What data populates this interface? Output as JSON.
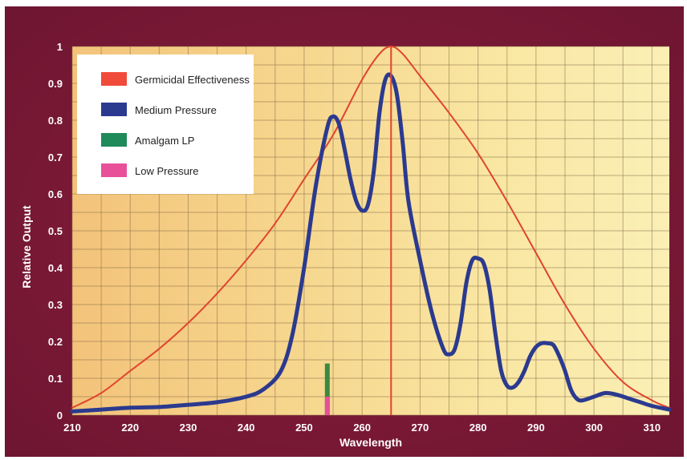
{
  "chart_data": {
    "type": "line",
    "xlabel": "Wavelength",
    "ylabel": "Relative Output",
    "xlim": [
      210,
      313
    ],
    "ylim": [
      0,
      1
    ],
    "x_ticks": [
      "210",
      "220",
      "230",
      "240",
      "250",
      "260",
      "270",
      "280",
      "290",
      "300",
      "310"
    ],
    "y_ticks": [
      "0",
      "0.1",
      "0.2",
      "0.3",
      "0.4",
      "0.5",
      "0.6",
      "0.7",
      "0.8",
      "0.9",
      "1"
    ],
    "grid": true,
    "legend_position": "top-left",
    "legend": [
      {
        "label": "Germicidal Effectiveness",
        "color": "#f04a3a"
      },
      {
        "label": "Medium Pressure",
        "color": "#2b3a8f"
      },
      {
        "label": "Amalgam LP",
        "color": "#1f8a5a"
      },
      {
        "label": "Low Pressure",
        "color": "#e8509a"
      }
    ],
    "series": [
      {
        "name": "Germicidal Effectiveness",
        "color": "#e0452e",
        "points": [
          [
            210,
            0.02
          ],
          [
            215,
            0.06
          ],
          [
            220,
            0.12
          ],
          [
            225,
            0.18
          ],
          [
            230,
            0.25
          ],
          [
            235,
            0.33
          ],
          [
            240,
            0.42
          ],
          [
            245,
            0.52
          ],
          [
            250,
            0.64
          ],
          [
            255,
            0.76
          ],
          [
            260,
            0.91
          ],
          [
            263,
            0.98
          ],
          [
            265,
            1.0
          ],
          [
            267,
            0.98
          ],
          [
            270,
            0.92
          ],
          [
            275,
            0.82
          ],
          [
            280,
            0.71
          ],
          [
            285,
            0.58
          ],
          [
            290,
            0.44
          ],
          [
            295,
            0.3
          ],
          [
            300,
            0.18
          ],
          [
            305,
            0.09
          ],
          [
            310,
            0.04
          ],
          [
            313,
            0.02
          ]
        ]
      },
      {
        "name": "Medium Pressure",
        "color": "#2b3a8f",
        "points": [
          [
            210,
            0.01
          ],
          [
            215,
            0.015
          ],
          [
            220,
            0.02
          ],
          [
            225,
            0.022
          ],
          [
            230,
            0.028
          ],
          [
            235,
            0.035
          ],
          [
            240,
            0.05
          ],
          [
            243,
            0.07
          ],
          [
            246,
            0.12
          ],
          [
            248,
            0.22
          ],
          [
            250,
            0.4
          ],
          [
            252,
            0.62
          ],
          [
            254,
            0.78
          ],
          [
            255,
            0.81
          ],
          [
            256,
            0.79
          ],
          [
            257,
            0.72
          ],
          [
            258,
            0.64
          ],
          [
            259,
            0.58
          ],
          [
            260,
            0.555
          ],
          [
            261,
            0.57
          ],
          [
            262,
            0.66
          ],
          [
            263,
            0.82
          ],
          [
            264,
            0.91
          ],
          [
            265,
            0.92
          ],
          [
            266,
            0.87
          ],
          [
            267,
            0.74
          ],
          [
            268,
            0.58
          ],
          [
            270,
            0.42
          ],
          [
            272,
            0.28
          ],
          [
            274,
            0.18
          ],
          [
            275,
            0.165
          ],
          [
            276,
            0.18
          ],
          [
            277,
            0.25
          ],
          [
            278,
            0.36
          ],
          [
            279,
            0.42
          ],
          [
            280,
            0.425
          ],
          [
            281,
            0.41
          ],
          [
            282,
            0.34
          ],
          [
            283,
            0.22
          ],
          [
            284,
            0.12
          ],
          [
            285,
            0.08
          ],
          [
            286,
            0.075
          ],
          [
            287,
            0.09
          ],
          [
            288,
            0.12
          ],
          [
            289,
            0.16
          ],
          [
            290,
            0.185
          ],
          [
            291,
            0.195
          ],
          [
            292,
            0.195
          ],
          [
            293,
            0.19
          ],
          [
            294,
            0.16
          ],
          [
            295,
            0.12
          ],
          [
            296,
            0.07
          ],
          [
            297,
            0.045
          ],
          [
            298,
            0.04
          ],
          [
            300,
            0.05
          ],
          [
            302,
            0.06
          ],
          [
            304,
            0.055
          ],
          [
            306,
            0.045
          ],
          [
            308,
            0.035
          ],
          [
            310,
            0.025
          ],
          [
            313,
            0.015
          ]
        ]
      },
      {
        "name": "Amalgam LP",
        "color": "#3a8a40",
        "type": "bar",
        "x": 254,
        "values": [
          0.14
        ]
      },
      {
        "name": "Low Pressure",
        "color": "#e8509a",
        "type": "bar",
        "x": 254,
        "values": [
          0.05
        ]
      }
    ]
  }
}
